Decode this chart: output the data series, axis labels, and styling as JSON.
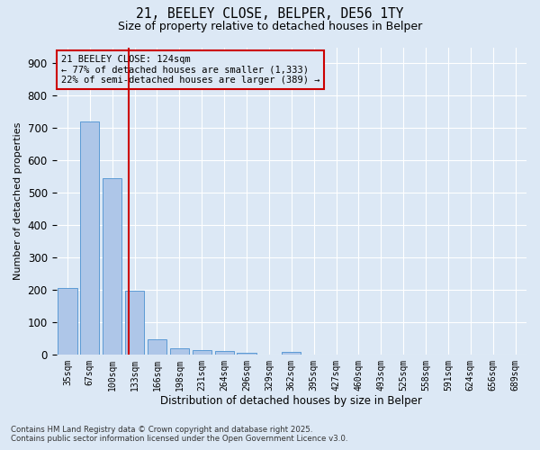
{
  "title_line1": "21, BEELEY CLOSE, BELPER, DE56 1TY",
  "title_line2": "Size of property relative to detached houses in Belper",
  "xlabel": "Distribution of detached houses by size in Belper",
  "ylabel": "Number of detached properties",
  "categories": [
    "35sqm",
    "67sqm",
    "100sqm",
    "133sqm",
    "166sqm",
    "198sqm",
    "231sqm",
    "264sqm",
    "296sqm",
    "329sqm",
    "362sqm",
    "395sqm",
    "427sqm",
    "460sqm",
    "493sqm",
    "525sqm",
    "558sqm",
    "591sqm",
    "624sqm",
    "656sqm",
    "689sqm"
  ],
  "values": [
    205,
    720,
    545,
    197,
    47,
    20,
    14,
    11,
    5,
    0,
    7,
    0,
    0,
    0,
    0,
    0,
    0,
    0,
    0,
    0,
    0
  ],
  "bar_color": "#aec6e8",
  "bar_edge_color": "#5b9bd5",
  "vline_color": "#cc0000",
  "vline_x": 2.72,
  "annotation_text": "21 BEELEY CLOSE: 124sqm\n← 77% of detached houses are smaller (1,333)\n22% of semi-detached houses are larger (389) →",
  "annotation_box_color": "#cc0000",
  "ylim": [
    0,
    950
  ],
  "yticks": [
    0,
    100,
    200,
    300,
    400,
    500,
    600,
    700,
    800,
    900
  ],
  "bg_color": "#dce8f5",
  "grid_color": "#ffffff",
  "footnote": "Contains HM Land Registry data © Crown copyright and database right 2025.\nContains public sector information licensed under the Open Government Licence v3.0."
}
